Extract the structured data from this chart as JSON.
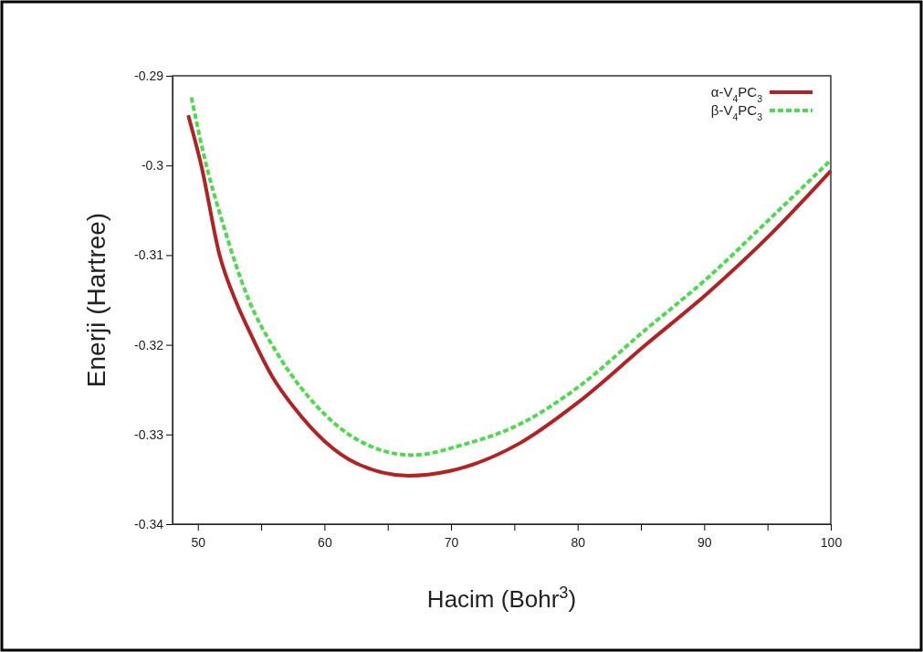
{
  "chart_data": {
    "type": "line",
    "xlabel": "Hacim (Bohr$^{3}$)",
    "ylabel": "Enerji (Hartree)",
    "xlim": [
      48,
      100
    ],
    "ylim": [
      -0.34,
      -0.29
    ],
    "xticks": [
      50,
      {
        "value": 55,
        "label": null
      },
      60,
      {
        "value": 65,
        "label": null
      },
      70,
      {
        "value": 75,
        "label": null
      },
      80,
      {
        "value": 85,
        "label": null
      },
      90,
      {
        "value": 95,
        "label": null
      },
      100
    ],
    "yticks": [
      -0.34,
      -0.33,
      -0.32,
      -0.31,
      -0.3,
      -0.29
    ],
    "grid": false,
    "legend": "top right",
    "marker": "none",
    "series": [
      {
        "name": "α-V$_{4}$PC$_{3}$",
        "color": "#b22222",
        "line_style": "solid",
        "x": [
          49.24,
          50.27,
          51.7,
          53.08,
          53.94,
          55.9,
          57.6,
          60.05,
          62.5,
          66.64,
          69.82,
          75.4,
          80.06,
          85.3,
          90.3,
          95.3,
          100
        ],
        "values": [
          -0.2944,
          -0.3,
          -0.3099,
          -0.3154,
          -0.3181,
          -0.3236,
          -0.327,
          -0.3308,
          -0.3332,
          -0.3346,
          -0.3341,
          -0.331,
          -0.3264,
          -0.3201,
          -0.3142,
          -0.3076,
          -0.3006
        ]
      },
      {
        "name": "β-V$_{4}$PC$_{3}$",
        "color": "#4fd94f",
        "line_style": "dashed",
        "x": [
          49.49,
          50.5,
          51.98,
          53.94,
          56.38,
          59.3,
          62.5,
          66.9,
          71.05,
          75.5,
          80.06,
          85.3,
          90.3,
          95.3,
          100
        ],
        "values": [
          -0.2924,
          -0.299,
          -0.3065,
          -0.3147,
          -0.3212,
          -0.3267,
          -0.3305,
          -0.3323,
          -0.3311,
          -0.3288,
          -0.3247,
          -0.3184,
          -0.3125,
          -0.3058,
          -0.2994
        ]
      }
    ]
  }
}
